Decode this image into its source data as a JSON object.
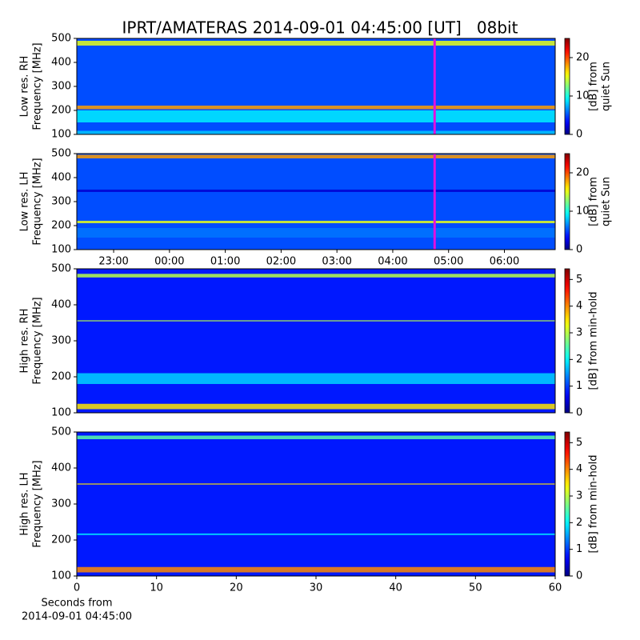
{
  "chart_data": [
    {
      "type": "spectrogram",
      "title": "IPRT/AMATERAS 2014-09-01 04:45:00 [UT]   08bit",
      "ylabel": [
        "Low res. RH",
        "Frequency [MHz]"
      ],
      "ylim": [
        100,
        500
      ],
      "yticks": [
        100,
        200,
        300,
        400,
        500
      ],
      "xlim": [
        -1.66,
        6.91
      ],
      "background": 5,
      "bands": [
        {
          "from": 470,
          "to": 490,
          "value": 15
        },
        {
          "from": 205,
          "to": 220,
          "value": 18
        },
        {
          "from": 150,
          "to": 200,
          "value": 9
        },
        {
          "from": 100,
          "to": 115,
          "value": 8
        }
      ],
      "marker_x": 4.75,
      "marker_color": "#e010e0",
      "clim": [
        0,
        25
      ],
      "cticks": [
        0,
        10,
        20
      ],
      "clabel": [
        "[dB] from",
        "quiet Sun"
      ]
    },
    {
      "type": "spectrogram",
      "ylabel": [
        "Low res. LH",
        "Frequency [MHz]"
      ],
      "ylim": [
        100,
        500
      ],
      "yticks": [
        100,
        200,
        300,
        400,
        500
      ],
      "xlim": [
        -1.66,
        6.91
      ],
      "xticks": [
        {
          "value": -1,
          "label": "23:00"
        },
        {
          "value": 0,
          "label": "00:00"
        },
        {
          "value": 1,
          "label": "01:00"
        },
        {
          "value": 2,
          "label": "02:00"
        },
        {
          "value": 3,
          "label": "03:00"
        },
        {
          "value": 4,
          "label": "04:00"
        },
        {
          "value": 5,
          "label": "05:00"
        },
        {
          "value": 6,
          "label": "06:00"
        }
      ],
      "background": 5,
      "bands": [
        {
          "from": 480,
          "to": 495,
          "value": 18
        },
        {
          "from": 210,
          "to": 220,
          "value": 15
        },
        {
          "from": 150,
          "to": 190,
          "value": 6
        },
        {
          "from": 340,
          "to": 350,
          "value": 2
        }
      ],
      "marker_x": 4.75,
      "marker_color": "#e010e0",
      "clim": [
        0,
        25
      ],
      "cticks": [
        0,
        10,
        20
      ],
      "clabel": [
        "[dB] from",
        "quiet Sun"
      ]
    },
    {
      "type": "spectrogram",
      "ylabel": [
        "High res. RH",
        "Frequency [MHz]"
      ],
      "ylim": [
        100,
        500
      ],
      "yticks": [
        100,
        200,
        300,
        400,
        500
      ],
      "xlim": [
        0,
        60
      ],
      "background": 0.8,
      "bands": [
        {
          "from": 476,
          "to": 486,
          "value": 3
        },
        {
          "from": 180,
          "to": 210,
          "value": 1.8
        },
        {
          "from": 110,
          "to": 125,
          "value": 3.5
        },
        {
          "from": 354,
          "to": 357,
          "value": 3
        }
      ],
      "clim": [
        0,
        5.4
      ],
      "cticks": [
        0,
        1,
        2,
        3,
        4,
        5
      ],
      "clabel": [
        "[dB] from min-hold"
      ]
    },
    {
      "type": "spectrogram",
      "ylabel": [
        "High res. LH",
        "Frequency [MHz]"
      ],
      "ylim": [
        100,
        500
      ],
      "yticks": [
        100,
        200,
        300,
        400,
        500
      ],
      "xlim": [
        0,
        60
      ],
      "xticks": [
        0,
        10,
        20,
        30,
        40,
        50,
        60
      ],
      "xlabel": [
        "Seconds from",
        "2014-09-01 04:45:00"
      ],
      "background": 0.8,
      "bands": [
        {
          "from": 480,
          "to": 490,
          "value": 2.5
        },
        {
          "from": 110,
          "to": 125,
          "value": 4
        },
        {
          "from": 354,
          "to": 357,
          "value": 3.5
        },
        {
          "from": 214,
          "to": 218,
          "value": 2
        }
      ],
      "clim": [
        0,
        5.4
      ],
      "cticks": [
        0,
        1,
        2,
        3,
        4,
        5
      ],
      "clabel": [
        "[dB] from min-hold"
      ]
    }
  ]
}
